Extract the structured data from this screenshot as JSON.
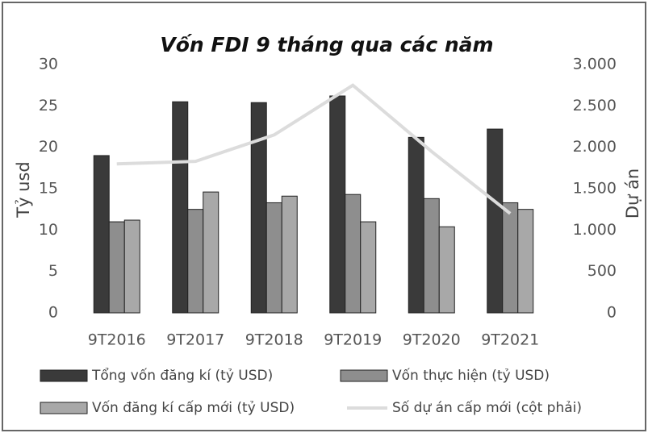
{
  "chart_data": {
    "type": "bar",
    "title": "Vốn FDI 9 tháng qua các năm",
    "ylabel": "Tỷ usd",
    "y2label": "Dự án",
    "categories": [
      "9T2016",
      "9T2017",
      "9T2018",
      "9T2019",
      "9T2020",
      "9T2021"
    ],
    "series": [
      {
        "name": "Tổng vốn đăng kí (tỷ USD)",
        "color": "#3a3a3a",
        "values": [
          19.0,
          25.5,
          25.4,
          26.2,
          21.2,
          22.2
        ]
      },
      {
        "name": "Vốn thực hiện (tỷ USD)",
        "color": "#8e8e8e",
        "values": [
          11.0,
          12.5,
          13.3,
          14.3,
          13.8,
          13.3
        ]
      },
      {
        "name": "Vốn đăng kí cấp mới (tỷ USD)",
        "color": "#a8a8a8",
        "values": [
          11.2,
          14.6,
          14.1,
          11.0,
          10.4,
          12.5
        ]
      },
      {
        "name": "Số dự án cấp mới (cột phải)",
        "color": "#dcdcdc",
        "type": "line",
        "axis": "y2",
        "values": [
          1800,
          1830,
          2150,
          2750,
          1950,
          1200
        ]
      }
    ],
    "ylim": [
      0,
      30
    ],
    "yticks": [
      0,
      5,
      10,
      15,
      20,
      25,
      30
    ],
    "y2lim": [
      0,
      3000
    ],
    "y2ticks": [
      0,
      500,
      {
        "value": 1000,
        "label": "1.000"
      },
      {
        "value": 1500,
        "label": "1.500"
      },
      {
        "value": 2000,
        "label": "2.000"
      },
      {
        "value": 2500,
        "label": "2.500"
      },
      {
        "value": 3000,
        "label": "3.000"
      }
    ],
    "grid": false,
    "legend": "bottom"
  }
}
